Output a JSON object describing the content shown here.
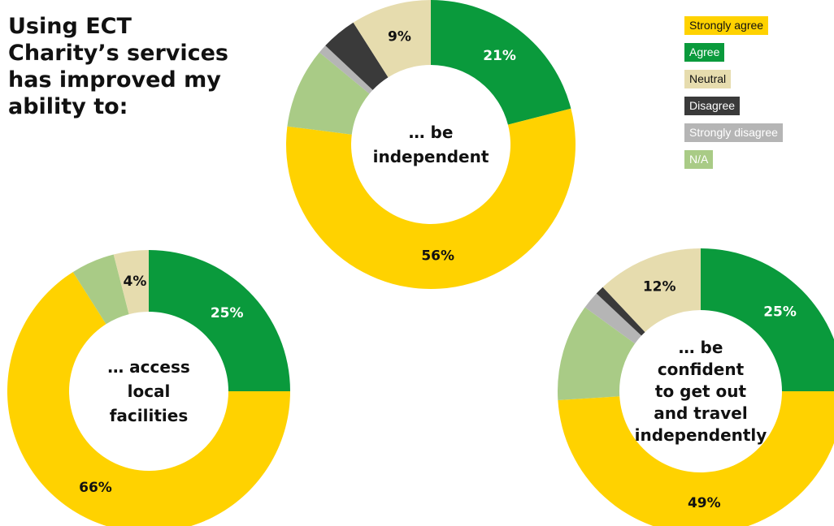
{
  "title_lines": [
    "Using ECT",
    "Charity’s services",
    "has improved my",
    "ability to:"
  ],
  "colors": {
    "strongly_agree": "#FFD200",
    "agree": "#0A9A3C",
    "neutral": "#E6DCAE",
    "disagree": "#3A3A3A",
    "strongly_disagree": "#B5B5B5",
    "na": "#A9CB86"
  },
  "legend": [
    {
      "label": "Strongly agree",
      "key": "strongly_agree",
      "text_color": "#111111"
    },
    {
      "label": "Agree",
      "key": "agree",
      "text_color": "#ffffff"
    },
    {
      "label": "Neutral",
      "key": "neutral",
      "text_color": "#111111"
    },
    {
      "label": "Disagree",
      "key": "disagree",
      "text_color": "#ffffff"
    },
    {
      "label": "Strongly disagree",
      "key": "strongly_disagree",
      "text_color": "#ffffff"
    },
    {
      "label": "N/A",
      "key": "na",
      "text_color": "#ffffff"
    }
  ],
  "chart_data": [
    {
      "type": "pie",
      "donut": true,
      "center_lines": [
        "… be",
        "independent"
      ],
      "slices": [
        {
          "category": "Agree",
          "key": "agree",
          "value": 21,
          "label": "21%"
        },
        {
          "category": "Strongly agree",
          "key": "strongly_agree",
          "value": 56,
          "label": "56%"
        },
        {
          "category": "N/A",
          "key": "na",
          "value": 9,
          "label": ""
        },
        {
          "category": "Strongly disagree",
          "key": "strongly_disagree",
          "value": 1,
          "label": ""
        },
        {
          "category": "Disagree",
          "key": "disagree",
          "value": 4,
          "label": ""
        },
        {
          "category": "Neutral",
          "key": "neutral",
          "value": 9,
          "label": "9%"
        }
      ]
    },
    {
      "type": "pie",
      "donut": true,
      "center_lines": [
        "… access",
        "local",
        "facilities"
      ],
      "slices": [
        {
          "category": "Agree",
          "key": "agree",
          "value": 25,
          "label": "25%"
        },
        {
          "category": "Strongly agree",
          "key": "strongly_agree",
          "value": 66,
          "label": "66%"
        },
        {
          "category": "N/A",
          "key": "na",
          "value": 5,
          "label": ""
        },
        {
          "category": "Neutral",
          "key": "neutral",
          "value": 4,
          "label": "4%"
        }
      ]
    },
    {
      "type": "pie",
      "donut": true,
      "center_lines": [
        "… be",
        "confident",
        "to get out",
        "and travel",
        "independently"
      ],
      "slices": [
        {
          "category": "Agree",
          "key": "agree",
          "value": 25,
          "label": "25%"
        },
        {
          "category": "Strongly agree",
          "key": "strongly_agree",
          "value": 49,
          "label": "49%"
        },
        {
          "category": "N/A",
          "key": "na",
          "value": 11,
          "label": ""
        },
        {
          "category": "Strongly disagree",
          "key": "strongly_disagree",
          "value": 2,
          "label": ""
        },
        {
          "category": "Disagree",
          "key": "disagree",
          "value": 1,
          "label": ""
        },
        {
          "category": "Neutral",
          "key": "neutral",
          "value": 12,
          "label": "12%"
        }
      ]
    }
  ]
}
